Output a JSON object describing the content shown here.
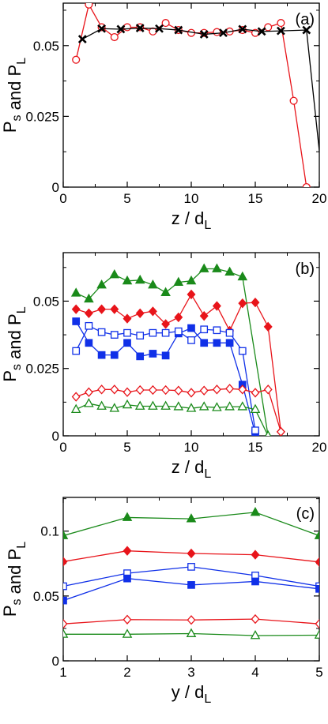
{
  "colors": {
    "red": "#e8141a",
    "black": "#000000",
    "blue": "#1030e8",
    "green": "#1a8a1a"
  },
  "chart_data": [
    {
      "type": "line",
      "panel_label": "(a)",
      "xlabel": "z / dL",
      "ylabel": "Ps and PL",
      "xlim": [
        0,
        20
      ],
      "ylim": [
        0,
        0.065
      ],
      "xticks": [
        0,
        5,
        10,
        15,
        20
      ],
      "yticks": [
        0,
        0.025,
        0.05
      ],
      "xtick_labels": [
        "0",
        "5",
        "10",
        "15",
        "20"
      ],
      "ytick_labels": [
        "0",
        "0.025",
        "0.05"
      ],
      "series": [
        {
          "color": "red",
          "marker": "circle-open",
          "x": [
            1,
            2,
            3,
            4,
            5,
            6,
            7,
            8,
            9,
            10,
            11,
            12,
            13,
            14,
            15,
            16,
            17,
            18,
            19
          ],
          "y": [
            0.045,
            0.0645,
            0.0565,
            0.053,
            0.0565,
            0.0565,
            0.055,
            0.058,
            0.0555,
            0.0545,
            0.0545,
            0.0548,
            0.055,
            0.0555,
            0.0545,
            0.0565,
            0.058,
            0.0305,
            0.0
          ]
        },
        {
          "color": "black",
          "marker": "x",
          "x": [
            1.5,
            3,
            4.5,
            6,
            7.5,
            9,
            11,
            12.5,
            14,
            15.5,
            17,
            19,
            20.3
          ],
          "y": [
            0.0523,
            0.056,
            0.0558,
            0.0562,
            0.056,
            0.0555,
            0.054,
            0.0545,
            0.0558,
            0.055,
            0.0552,
            0.0555,
            0.0
          ]
        }
      ]
    },
    {
      "type": "line",
      "panel_label": "(b)",
      "xlabel": "z / dL",
      "ylabel": "Ps and PL",
      "xlim": [
        0,
        20
      ],
      "ylim": [
        0,
        0.068
      ],
      "xticks": [
        0,
        5,
        10,
        15,
        20
      ],
      "yticks": [
        0,
        0.025,
        0.05
      ],
      "xtick_labels": [
        "0",
        "5",
        "10",
        "15",
        "20"
      ],
      "ytick_labels": [
        "0",
        "0.025",
        "0.05"
      ],
      "series": [
        {
          "color": "green",
          "marker": "triangle-filled",
          "x": [
            1,
            2,
            3,
            4,
            5,
            6,
            7,
            8,
            9,
            10,
            11,
            12,
            13,
            14,
            16
          ],
          "y": [
            0.053,
            0.0508,
            0.056,
            0.0598,
            0.0575,
            0.0578,
            0.056,
            0.0532,
            0.057,
            0.0575,
            0.062,
            0.062,
            0.0608,
            0.059,
            0.0
          ]
        },
        {
          "color": "red",
          "marker": "diamond-filled",
          "x": [
            1,
            2,
            3,
            4,
            5,
            6,
            7,
            8,
            9,
            10,
            11,
            12,
            13,
            14,
            15,
            16,
            17
          ],
          "y": [
            0.047,
            0.0455,
            0.047,
            0.047,
            0.0435,
            0.0455,
            0.0462,
            0.0415,
            0.044,
            0.0525,
            0.0445,
            0.0482,
            0.039,
            0.0492,
            0.0495,
            0.0405,
            0.0015
          ]
        },
        {
          "color": "blue",
          "marker": "square-filled",
          "x": [
            1,
            2,
            3,
            4,
            5,
            6,
            7,
            8,
            9,
            10,
            11,
            12,
            13,
            14,
            15
          ],
          "y": [
            0.0425,
            0.0345,
            0.03,
            0.03,
            0.0345,
            0.0295,
            0.0305,
            0.0298,
            0.038,
            0.04,
            0.0345,
            0.0345,
            0.0345,
            0.019,
            0.0008
          ]
        },
        {
          "color": "blue",
          "marker": "square-open",
          "x": [
            1,
            2,
            3,
            4,
            5,
            6,
            7,
            8,
            9,
            10,
            11,
            12,
            13,
            14,
            15
          ],
          "y": [
            0.0315,
            0.0408,
            0.0385,
            0.0375,
            0.0382,
            0.0372,
            0.0382,
            0.0382,
            0.0388,
            0.0355,
            0.0395,
            0.0392,
            0.0382,
            0.0315,
            0.002
          ]
        },
        {
          "color": "red",
          "marker": "diamond-open",
          "x": [
            1,
            2,
            3,
            4,
            5,
            6,
            7,
            8,
            9,
            10,
            11,
            12,
            13,
            14,
            15,
            16,
            17
          ],
          "y": [
            0.0145,
            0.0162,
            0.0172,
            0.0172,
            0.0162,
            0.017,
            0.017,
            0.017,
            0.0168,
            0.016,
            0.0168,
            0.0172,
            0.0175,
            0.0172,
            0.016,
            0.0172,
            0.0015
          ]
        },
        {
          "color": "green",
          "marker": "triangle-open",
          "x": [
            1,
            2,
            3,
            4,
            5,
            6,
            7,
            8,
            9,
            10,
            11,
            12,
            13,
            14,
            15,
            16
          ],
          "y": [
            0.0098,
            0.012,
            0.011,
            0.0102,
            0.0115,
            0.011,
            0.011,
            0.011,
            0.0108,
            0.0102,
            0.0108,
            0.0105,
            0.0108,
            0.0108,
            0.0098,
            0.0
          ]
        }
      ]
    },
    {
      "type": "line",
      "panel_label": "(c)",
      "xlabel": "y / dL",
      "ylabel": "Ps and PL",
      "xlim": [
        1,
        5
      ],
      "ylim": [
        0,
        0.126
      ],
      "xticks": [
        1,
        2,
        3,
        4,
        5
      ],
      "yticks": [
        0,
        0.05,
        0.1
      ],
      "xtick_labels": [
        "1",
        "2",
        "3",
        "4",
        "5"
      ],
      "ytick_labels": [
        "0",
        "0.05",
        "0.1"
      ],
      "series": [
        {
          "color": "green",
          "marker": "triangle-filled",
          "x": [
            1,
            2,
            3,
            4,
            5
          ],
          "y": [
            0.0965,
            0.1105,
            0.1095,
            0.1145,
            0.0965
          ]
        },
        {
          "color": "red",
          "marker": "diamond-filled",
          "x": [
            1,
            2,
            3,
            4,
            5
          ],
          "y": [
            0.0765,
            0.0848,
            0.0828,
            0.0818,
            0.0762
          ]
        },
        {
          "color": "blue",
          "marker": "square-open",
          "x": [
            1,
            2,
            3,
            4,
            5
          ],
          "y": [
            0.0575,
            0.0675,
            0.0725,
            0.0658,
            0.0575
          ]
        },
        {
          "color": "blue",
          "marker": "square-filled",
          "x": [
            1,
            2,
            3,
            4,
            5
          ],
          "y": [
            0.0465,
            0.0635,
            0.0585,
            0.0612,
            0.0555
          ]
        },
        {
          "color": "red",
          "marker": "diamond-open",
          "x": [
            1,
            2,
            3,
            4,
            5
          ],
          "y": [
            0.0285,
            0.0318,
            0.0315,
            0.0322,
            0.0285
          ]
        },
        {
          "color": "green",
          "marker": "triangle-open",
          "x": [
            1,
            2,
            3,
            4,
            5
          ],
          "y": [
            0.0205,
            0.0205,
            0.021,
            0.0195,
            0.0198
          ]
        }
      ]
    }
  ]
}
